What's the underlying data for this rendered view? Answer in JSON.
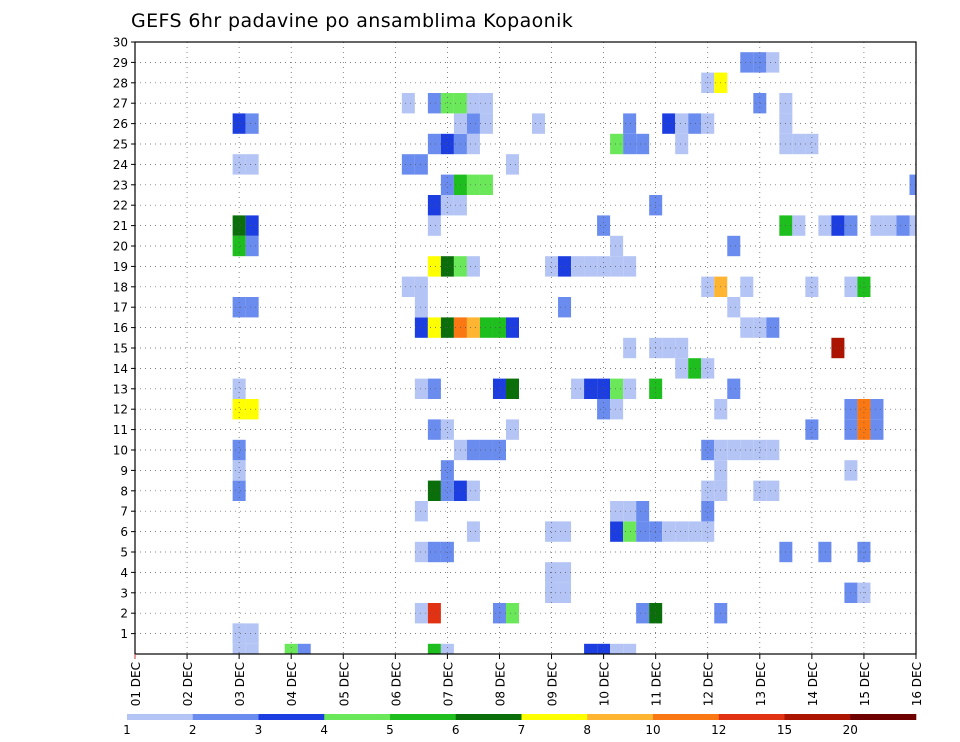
{
  "chart_data": {
    "type": "heatmap",
    "title": "GEFS 6hr padavine po ansamblima Kopaonik",
    "xlabel": "",
    "ylabel": "",
    "x_ticks": [
      "01 DEC",
      "02 DEC",
      "03 DEC",
      "04 DEC",
      "05 DEC",
      "06 DEC",
      "07 DEC",
      "08 DEC",
      "09 DEC",
      "10 DEC",
      "11 DEC",
      "12 DEC",
      "13 DEC",
      "14 DEC",
      "15 DEC",
      "16 DEC"
    ],
    "x_range_steps": [
      0,
      60
    ],
    "y_range_members": [
      0,
      30
    ],
    "y_ticks": [
      1,
      2,
      3,
      4,
      5,
      6,
      7,
      8,
      9,
      10,
      11,
      12,
      13,
      14,
      15,
      16,
      17,
      18,
      19,
      20,
      21,
      22,
      23,
      24,
      25,
      26,
      27,
      28,
      29,
      30
    ],
    "grid": true,
    "legend_placement": "bottom",
    "legend": {
      "levels": [
        "1",
        "2",
        "3",
        "4",
        "5",
        "6",
        "7",
        "8",
        "10",
        "12",
        "15",
        "20"
      ],
      "colors": [
        "#b4c5f5",
        "#6a8cef",
        "#1c3ee0",
        "#6ae85a",
        "#1dbe1d",
        "#0a6e0a",
        "#ffff00",
        "#ffb432",
        "#fa7814",
        "#e13214",
        "#aa1400",
        "#6e0000"
      ]
    },
    "cell_note": "each cell: [time_step_index (6h steps from 01 DEC 00Z), ensemble_member, color_class 1-12]",
    "cells": [
      [
        8,
        1,
        1
      ],
      [
        8,
        0,
        1
      ],
      [
        8,
        1,
        1
      ],
      [
        9,
        1,
        1
      ],
      [
        9,
        0,
        1
      ],
      [
        12,
        0,
        4
      ],
      [
        13,
        0,
        2
      ],
      [
        23,
        0,
        5
      ],
      [
        24,
        0,
        1
      ],
      [
        35,
        0,
        3
      ],
      [
        36,
        0,
        3
      ],
      [
        37,
        0,
        1
      ],
      [
        38,
        0,
        1
      ],
      [
        22,
        2,
        1
      ],
      [
        23,
        2,
        10
      ],
      [
        28,
        2,
        2
      ],
      [
        29,
        2,
        4
      ],
      [
        39,
        2,
        2
      ],
      [
        40,
        2,
        6
      ],
      [
        45,
        2,
        2
      ],
      [
        55,
        3,
        2
      ],
      [
        56,
        3,
        1
      ],
      [
        32,
        4,
        1
      ],
      [
        33,
        4,
        1
      ],
      [
        32,
        3,
        1
      ],
      [
        33,
        3,
        1
      ],
      [
        22,
        5,
        1
      ],
      [
        23,
        5,
        2
      ],
      [
        24,
        5,
        2
      ],
      [
        50,
        5,
        2
      ],
      [
        53,
        5,
        2
      ],
      [
        56,
        5,
        2
      ],
      [
        26,
        6,
        1
      ],
      [
        32,
        6,
        1
      ],
      [
        33,
        6,
        1
      ],
      [
        37,
        6,
        3
      ],
      [
        38,
        6,
        4
      ],
      [
        39,
        6,
        2
      ],
      [
        40,
        6,
        2
      ],
      [
        41,
        6,
        1
      ],
      [
        42,
        6,
        1
      ],
      [
        43,
        6,
        1
      ],
      [
        44,
        6,
        1
      ],
      [
        22,
        7,
        1
      ],
      [
        37,
        7,
        1
      ],
      [
        38,
        7,
        1
      ],
      [
        39,
        7,
        2
      ],
      [
        44,
        7,
        2
      ],
      [
        23,
        8,
        6
      ],
      [
        24,
        8,
        2
      ],
      [
        25,
        8,
        3
      ],
      [
        26,
        8,
        1
      ],
      [
        8,
        8,
        2
      ],
      [
        44,
        8,
        1
      ],
      [
        45,
        8,
        1
      ],
      [
        48,
        8,
        1
      ],
      [
        49,
        8,
        1
      ],
      [
        8,
        9,
        1
      ],
      [
        24,
        9,
        2
      ],
      [
        45,
        9,
        1
      ],
      [
        55,
        9,
        1
      ],
      [
        8,
        10,
        2
      ],
      [
        25,
        10,
        1
      ],
      [
        26,
        10,
        2
      ],
      [
        27,
        10,
        2
      ],
      [
        28,
        10,
        2
      ],
      [
        44,
        10,
        2
      ],
      [
        45,
        10,
        1
      ],
      [
        46,
        10,
        1
      ],
      [
        47,
        10,
        1
      ],
      [
        48,
        10,
        1
      ],
      [
        49,
        10,
        1
      ],
      [
        23,
        11,
        2
      ],
      [
        24,
        11,
        1
      ],
      [
        29,
        11,
        1
      ],
      [
        52,
        11,
        2
      ],
      [
        55,
        11,
        2
      ],
      [
        56,
        11,
        9
      ],
      [
        57,
        11,
        2
      ],
      [
        8,
        12,
        7
      ],
      [
        9,
        12,
        7
      ],
      [
        36,
        12,
        2
      ],
      [
        37,
        12,
        1
      ],
      [
        45,
        12,
        1
      ],
      [
        55,
        12,
        2
      ],
      [
        56,
        12,
        9
      ],
      [
        57,
        12,
        2
      ],
      [
        8,
        13,
        1
      ],
      [
        22,
        13,
        1
      ],
      [
        23,
        13,
        2
      ],
      [
        28,
        13,
        3
      ],
      [
        29,
        13,
        6
      ],
      [
        34,
        13,
        1
      ],
      [
        35,
        13,
        3
      ],
      [
        36,
        13,
        3
      ],
      [
        37,
        13,
        4
      ],
      [
        38,
        13,
        1
      ],
      [
        40,
        13,
        5
      ],
      [
        46,
        13,
        2
      ],
      [
        42,
        14,
        1
      ],
      [
        43,
        14,
        5
      ],
      [
        44,
        14,
        1
      ],
      [
        38,
        15,
        1
      ],
      [
        40,
        15,
        1
      ],
      [
        41,
        15,
        1
      ],
      [
        42,
        15,
        1
      ],
      [
        54,
        15,
        11
      ],
      [
        22,
        16,
        3
      ],
      [
        23,
        16,
        7
      ],
      [
        24,
        16,
        6
      ],
      [
        25,
        16,
        9
      ],
      [
        26,
        16,
        8
      ],
      [
        27,
        16,
        5
      ],
      [
        28,
        16,
        5
      ],
      [
        29,
        16,
        3
      ],
      [
        47,
        16,
        1
      ],
      [
        48,
        16,
        1
      ],
      [
        49,
        16,
        2
      ],
      [
        8,
        17,
        2
      ],
      [
        9,
        17,
        2
      ],
      [
        22,
        17,
        1
      ],
      [
        33,
        17,
        2
      ],
      [
        46,
        17,
        1
      ],
      [
        21,
        18,
        1
      ],
      [
        22,
        18,
        1
      ],
      [
        44,
        18,
        1
      ],
      [
        45,
        18,
        8
      ],
      [
        47,
        18,
        1
      ],
      [
        52,
        18,
        1
      ],
      [
        55,
        18,
        1
      ],
      [
        56,
        18,
        5
      ],
      [
        23,
        19,
        7
      ],
      [
        24,
        19,
        6
      ],
      [
        25,
        19,
        4
      ],
      [
        26,
        19,
        1
      ],
      [
        32,
        19,
        1
      ],
      [
        33,
        19,
        3
      ],
      [
        34,
        19,
        1
      ],
      [
        35,
        19,
        1
      ],
      [
        36,
        19,
        1
      ],
      [
        37,
        19,
        1
      ],
      [
        38,
        19,
        1
      ],
      [
        8,
        20,
        5
      ],
      [
        9,
        20,
        2
      ],
      [
        37,
        20,
        1
      ],
      [
        46,
        20,
        2
      ],
      [
        8,
        21,
        6
      ],
      [
        9,
        21,
        3
      ],
      [
        23,
        21,
        1
      ],
      [
        36,
        21,
        2
      ],
      [
        50,
        21,
        5
      ],
      [
        51,
        21,
        1
      ],
      [
        53,
        21,
        1
      ],
      [
        54,
        21,
        3
      ],
      [
        55,
        21,
        2
      ],
      [
        57,
        21,
        1
      ],
      [
        58,
        21,
        1
      ],
      [
        59,
        21,
        2
      ],
      [
        60,
        21,
        1
      ],
      [
        23,
        22,
        3
      ],
      [
        24,
        22,
        1
      ],
      [
        25,
        22,
        1
      ],
      [
        40,
        22,
        2
      ],
      [
        24,
        23,
        2
      ],
      [
        25,
        23,
        5
      ],
      [
        26,
        23,
        4
      ],
      [
        27,
        23,
        4
      ],
      [
        60,
        23,
        2
      ],
      [
        8,
        24,
        1
      ],
      [
        9,
        24,
        1
      ],
      [
        21,
        24,
        2
      ],
      [
        22,
        24,
        2
      ],
      [
        29,
        24,
        1
      ],
      [
        23,
        25,
        2
      ],
      [
        24,
        25,
        3
      ],
      [
        25,
        25,
        2
      ],
      [
        26,
        25,
        1
      ],
      [
        37,
        25,
        4
      ],
      [
        38,
        25,
        2
      ],
      [
        39,
        25,
        2
      ],
      [
        42,
        25,
        1
      ],
      [
        50,
        25,
        1
      ],
      [
        51,
        25,
        1
      ],
      [
        52,
        25,
        1
      ],
      [
        8,
        26,
        3
      ],
      [
        9,
        26,
        2
      ],
      [
        25,
        26,
        1
      ],
      [
        26,
        26,
        2
      ],
      [
        27,
        26,
        1
      ],
      [
        31,
        26,
        1
      ],
      [
        38,
        26,
        2
      ],
      [
        41,
        26,
        3
      ],
      [
        42,
        26,
        1
      ],
      [
        43,
        26,
        2
      ],
      [
        44,
        26,
        1
      ],
      [
        50,
        26,
        1
      ],
      [
        21,
        27,
        1
      ],
      [
        23,
        27,
        2
      ],
      [
        24,
        27,
        4
      ],
      [
        25,
        27,
        4
      ],
      [
        26,
        27,
        1
      ],
      [
        27,
        27,
        1
      ],
      [
        48,
        27,
        2
      ],
      [
        50,
        27,
        1
      ],
      [
        44,
        28,
        1
      ],
      [
        45,
        28,
        7
      ],
      [
        47,
        29,
        2
      ],
      [
        48,
        29,
        2
      ],
      [
        49,
        29,
        1
      ]
    ]
  }
}
